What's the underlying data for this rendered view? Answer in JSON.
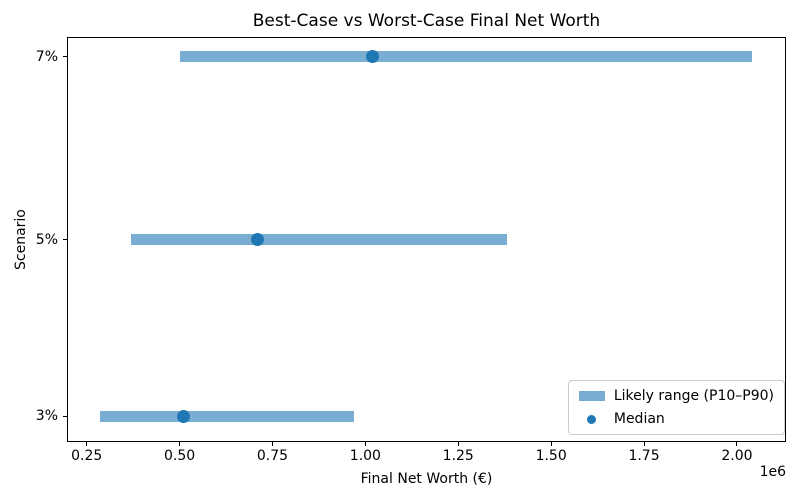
{
  "chart_data": {
    "type": "bar",
    "orientation": "horizontal",
    "title": "Best-Case vs Worst-Case Final Net Worth",
    "xlabel": "Final Net Worth (€)",
    "ylabel": "Scenario",
    "x_scale_offset_label": "1e6",
    "xlim": [
      197000,
      2132000
    ],
    "grid": false,
    "x_ticks": [
      {
        "value": 250000,
        "label": "0.25"
      },
      {
        "value": 500000,
        "label": "0.50"
      },
      {
        "value": 750000,
        "label": "0.75"
      },
      {
        "value": 1000000,
        "label": "1.00"
      },
      {
        "value": 1250000,
        "label": "1.25"
      },
      {
        "value": 1500000,
        "label": "1.50"
      },
      {
        "value": 1750000,
        "label": "1.75"
      },
      {
        "value": 2000000,
        "label": "2.00"
      }
    ],
    "categories": [
      "7%",
      "5%",
      "3%"
    ],
    "rows": [
      {
        "scenario": "7%",
        "p10": 500000,
        "median": 1020000,
        "p90": 2040000
      },
      {
        "scenario": "5%",
        "p10": 370000,
        "median": 710000,
        "p90": 1380000
      },
      {
        "scenario": "3%",
        "p10": 285000,
        "median": 510000,
        "p90": 970000
      }
    ],
    "row_fractions": [
      0.049,
      0.501,
      0.936
    ],
    "legend": {
      "position": "lower right",
      "entries": [
        {
          "label": "Likely range (P10–P90)",
          "marker": "bar-swatch"
        },
        {
          "label": "Median",
          "marker": "dot"
        }
      ]
    },
    "colors": {
      "range_bar": "#79add2",
      "median_dot": "#1f77b4",
      "text": "#000000",
      "spine": "#000000",
      "legend_border": "#cccccc"
    }
  }
}
